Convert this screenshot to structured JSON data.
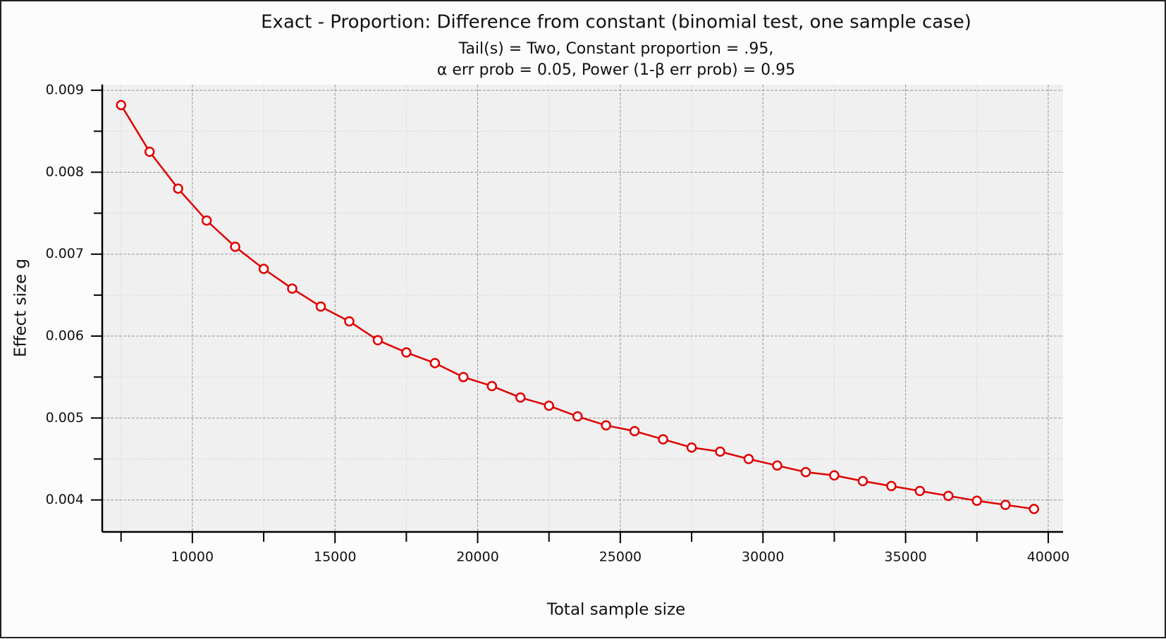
{
  "chart_data": {
    "type": "line",
    "title": "Exact - Proportion: Difference from constant (binomial test, one sample case)",
    "subtitle": [
      "Tail(s) = Two, Constant proportion = .95,",
      "α err prob = 0.05, Power (1-β err prob) = 0.95"
    ],
    "x_label": "Total sample size",
    "y_label": "Effect size g",
    "x": [
      7500,
      8500,
      9500,
      10500,
      11500,
      12500,
      13500,
      14500,
      15500,
      16500,
      17500,
      18500,
      19500,
      20500,
      21500,
      22500,
      23500,
      24500,
      25500,
      26500,
      27500,
      28500,
      29500,
      30500,
      31500,
      32500,
      33500,
      34500,
      35500,
      36500,
      37500,
      38500,
      39500
    ],
    "values": [
      0.00882,
      0.00825,
      0.0078,
      0.00741,
      0.00709,
      0.00682,
      0.00658,
      0.00636,
      0.00618,
      0.00595,
      0.0058,
      0.00567,
      0.0055,
      0.00539,
      0.00525,
      0.00515,
      0.00502,
      0.00491,
      0.00484,
      0.00474,
      0.00464,
      0.00459,
      0.0045,
      0.00442,
      0.00434,
      0.0043,
      0.00423,
      0.00417,
      0.00411,
      0.00405,
      0.00399,
      0.00394,
      0.00389
    ],
    "color": "#e00000",
    "xlim": [
      6840,
      40520
    ],
    "xticks": [
      10000,
      15000,
      20000,
      25000,
      30000,
      35000,
      40000
    ],
    "ylim": [
      0.00361,
      0.00907
    ],
    "yticks": [
      0.004,
      0.005,
      0.006,
      0.007,
      0.008,
      0.009
    ],
    "grid": true
  }
}
